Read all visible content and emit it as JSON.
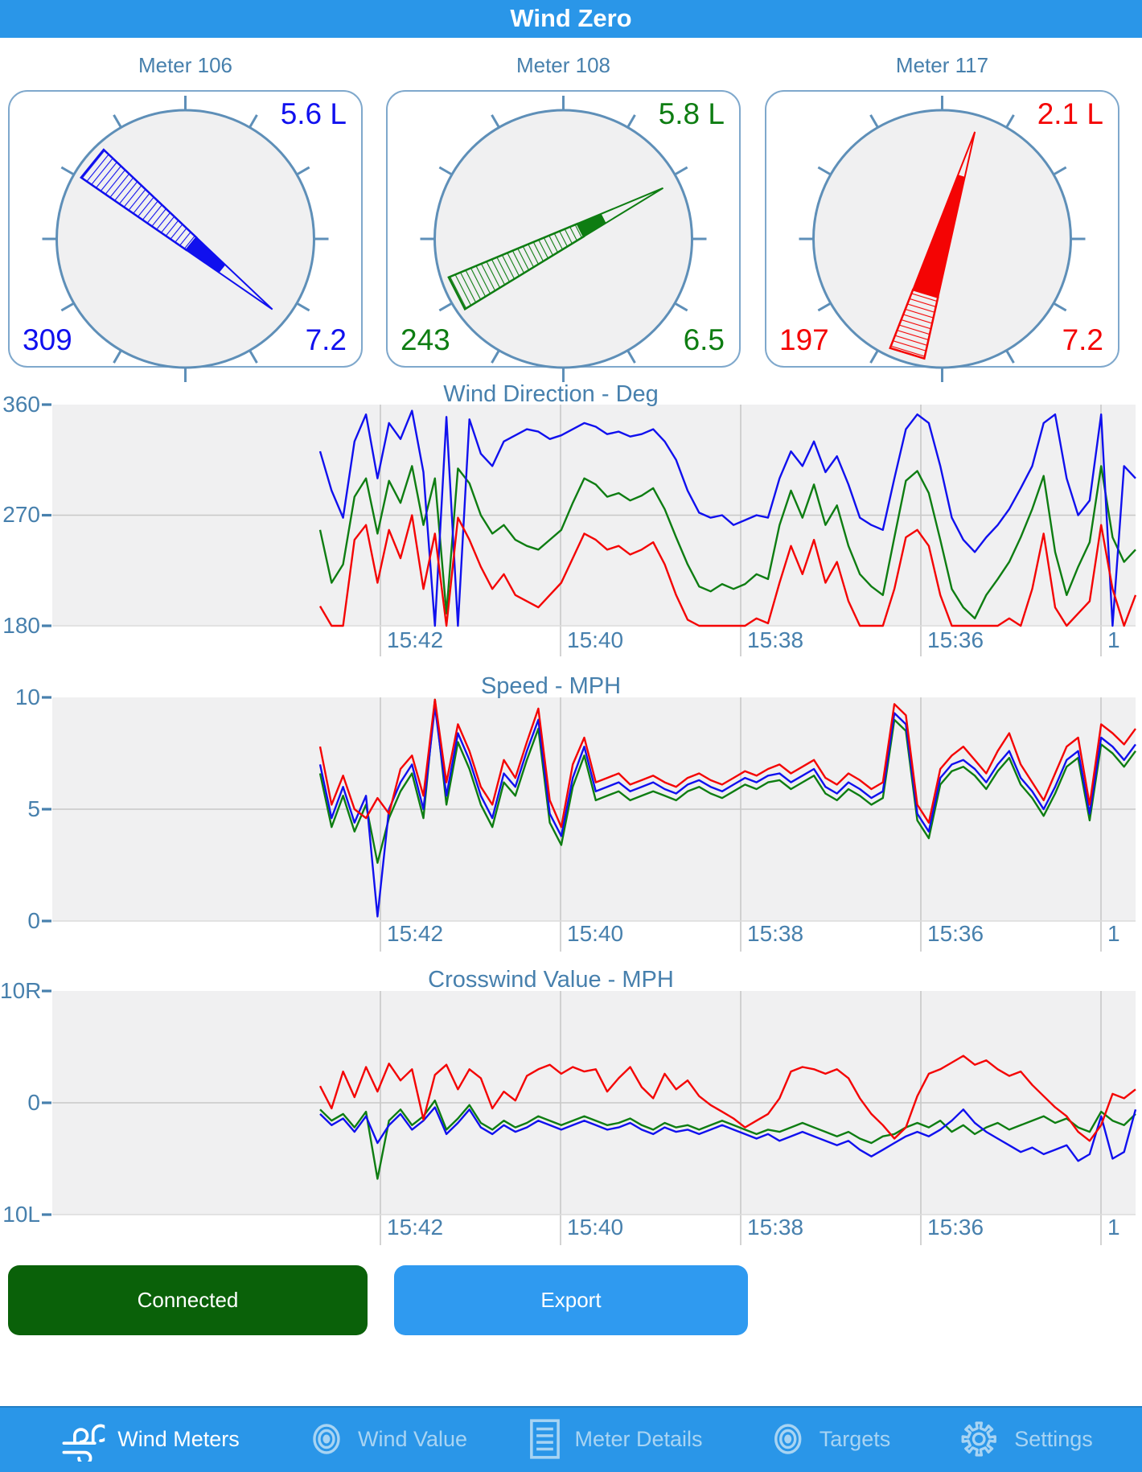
{
  "app": {
    "title": "Wind Zero"
  },
  "colors": {
    "accent_blue": "#2A96E8",
    "export_blue": "#2F9AF0",
    "connected_green": "#0A6109",
    "steel_text": "#4780AD",
    "plot_bg": "#F0F0F1",
    "grid": "#C8C8C8",
    "panel_border": "#7FA8CC",
    "gauge_ring": "#5E8FB8",
    "series_blue": "#1010EE",
    "series_green": "#0E7D12",
    "series_red": "#F40404"
  },
  "meters": [
    {
      "name": "Meter 106",
      "crosswind": "5.6 L",
      "direction": "309",
      "speed": "7.2",
      "color": "#1010EE",
      "needle": {
        "direction_deg": 309,
        "hatch_end": 0.55,
        "solid_end": 0.72
      }
    },
    {
      "name": "Meter 108",
      "crosswind": "5.8 L",
      "direction": "243",
      "speed": "6.5",
      "color": "#0E7D12",
      "needle": {
        "direction_deg": 243,
        "hatch_end": 0.6,
        "solid_end": 0.71
      }
    },
    {
      "name": "Meter 117",
      "crosswind": "2.1 L",
      "direction": "197",
      "speed": "7.2",
      "color": "#F40404",
      "needle": {
        "direction_deg": 197,
        "hatch_end": 0.27,
        "solid_end": 0.8
      }
    }
  ],
  "chart_data": [
    {
      "id": "wind-direction",
      "type": "line",
      "title": "Wind Direction - Deg",
      "ylabels": [
        "360",
        "270",
        "180"
      ],
      "ymin": 180,
      "ymax": 360,
      "x_labels": [
        "15:42",
        "15:40",
        "15:38",
        "15:36",
        "1"
      ],
      "grid": true,
      "legend": "none",
      "series": [
        {
          "name": "meter-108",
          "color": "#0E7D12",
          "values": [
            258,
            215,
            230,
            285,
            300,
            255,
            298,
            280,
            310,
            262,
            300,
            190,
            308,
            296,
            270,
            255,
            262,
            250,
            245,
            242,
            250,
            258,
            280,
            300,
            295,
            285,
            288,
            282,
            286,
            292,
            275,
            252,
            230,
            212,
            208,
            214,
            210,
            214,
            222,
            218,
            262,
            290,
            268,
            295,
            262,
            278,
            245,
            222,
            212,
            205,
            252,
            298,
            306,
            288,
            250,
            210,
            195,
            186,
            205,
            218,
            232,
            252,
            275,
            302,
            240,
            205,
            228,
            248,
            310,
            252,
            232,
            242
          ]
        },
        {
          "name": "meter-106",
          "color": "#1010EE",
          "values": [
            322,
            290,
            268,
            330,
            352,
            300,
            345,
            332,
            355,
            305,
            180,
            350,
            180,
            348,
            320,
            310,
            330,
            335,
            340,
            338,
            332,
            335,
            340,
            345,
            342,
            336,
            338,
            334,
            336,
            340,
            330,
            315,
            290,
            272,
            268,
            270,
            262,
            266,
            270,
            268,
            300,
            322,
            310,
            330,
            305,
            318,
            295,
            268,
            262,
            258,
            300,
            340,
            352,
            345,
            310,
            268,
            250,
            240,
            252,
            262,
            275,
            292,
            310,
            345,
            352,
            300,
            270,
            282,
            352,
            180,
            310,
            300
          ]
        },
        {
          "name": "meter-117",
          "color": "#F40404",
          "values": [
            196,
            180,
            180,
            250,
            262,
            215,
            258,
            235,
            270,
            210,
            255,
            180,
            268,
            250,
            228,
            210,
            222,
            205,
            200,
            195,
            205,
            215,
            235,
            255,
            250,
            242,
            245,
            238,
            242,
            248,
            230,
            205,
            185,
            180,
            180,
            180,
            180,
            180,
            186,
            182,
            215,
            245,
            222,
            250,
            215,
            232,
            200,
            180,
            180,
            180,
            210,
            252,
            258,
            245,
            205,
            180,
            180,
            180,
            180,
            180,
            186,
            180,
            210,
            255,
            195,
            180,
            190,
            200,
            262,
            210,
            180,
            205
          ]
        }
      ]
    },
    {
      "id": "speed",
      "type": "line",
      "title": "Speed - MPH",
      "ylabels": [
        "10",
        "5",
        "0"
      ],
      "ymin": 0,
      "ymax": 10,
      "x_labels": [
        "15:42",
        "15:40",
        "15:38",
        "15:36",
        "1"
      ],
      "grid": true,
      "legend": "none",
      "series": [
        {
          "name": "meter-108",
          "color": "#0E7D12",
          "values": [
            6.6,
            4.2,
            5.6,
            4.0,
            5.2,
            2.6,
            4.6,
            5.8,
            6.6,
            4.6,
            9.9,
            5.2,
            8.0,
            6.8,
            5.2,
            4.2,
            6.2,
            5.6,
            7.2,
            8.6,
            4.4,
            3.4,
            6.0,
            7.4,
            5.4,
            5.6,
            5.8,
            5.4,
            5.6,
            5.8,
            5.6,
            5.4,
            5.8,
            6.0,
            5.7,
            5.5,
            5.8,
            6.1,
            5.9,
            6.2,
            6.3,
            5.9,
            6.2,
            6.5,
            5.7,
            5.4,
            5.9,
            5.6,
            5.2,
            5.5,
            9.0,
            8.5,
            4.5,
            3.7,
            6.1,
            6.7,
            6.9,
            6.5,
            5.9,
            6.7,
            7.3,
            6.1,
            5.5,
            4.7,
            5.7,
            6.9,
            7.3,
            4.5,
            7.9,
            7.5,
            6.9,
            7.6
          ]
        },
        {
          "name": "meter-106",
          "color": "#1010EE",
          "values": [
            7.0,
            4.6,
            6.0,
            4.4,
            5.6,
            0.2,
            5.0,
            6.2,
            7.0,
            5.0,
            9.6,
            5.6,
            8.4,
            7.2,
            5.6,
            4.6,
            6.6,
            6.0,
            7.6,
            9.0,
            4.8,
            3.8,
            6.4,
            7.8,
            5.8,
            6.0,
            6.2,
            5.8,
            6.0,
            6.2,
            5.9,
            5.7,
            6.1,
            6.3,
            6.0,
            5.8,
            6.1,
            6.4,
            6.2,
            6.5,
            6.6,
            6.2,
            6.5,
            6.8,
            6.0,
            5.7,
            6.2,
            5.9,
            5.5,
            5.8,
            9.3,
            8.8,
            4.8,
            4.0,
            6.4,
            7.0,
            7.2,
            6.8,
            6.2,
            7.0,
            7.6,
            6.4,
            5.8,
            5.0,
            6.0,
            7.2,
            7.6,
            4.8,
            8.2,
            7.8,
            7.2,
            7.9
          ]
        },
        {
          "name": "meter-117",
          "color": "#F40404",
          "values": [
            7.8,
            5.2,
            6.5,
            5.0,
            4.6,
            5.5,
            4.8,
            6.8,
            7.4,
            5.6,
            9.9,
            6.2,
            8.8,
            7.6,
            6.0,
            5.2,
            7.2,
            6.4,
            8.0,
            9.5,
            5.4,
            4.2,
            7.0,
            8.2,
            6.2,
            6.4,
            6.6,
            6.1,
            6.3,
            6.5,
            6.2,
            6.0,
            6.4,
            6.6,
            6.3,
            6.1,
            6.4,
            6.7,
            6.5,
            6.8,
            7.0,
            6.6,
            6.9,
            7.2,
            6.4,
            6.1,
            6.6,
            6.3,
            5.9,
            6.2,
            9.7,
            9.2,
            5.2,
            4.4,
            6.8,
            7.4,
            7.8,
            7.2,
            6.6,
            7.6,
            8.4,
            7.0,
            6.2,
            5.4,
            6.6,
            7.8,
            8.2,
            5.2,
            8.8,
            8.4,
            7.9,
            8.6
          ]
        }
      ]
    },
    {
      "id": "crosswind",
      "type": "line",
      "title": "Crosswind Value - MPH",
      "ylabels": [
        "10R",
        "0",
        "10L"
      ],
      "ymin": -10,
      "ymax": 10,
      "x_labels": [
        "15:42",
        "15:40",
        "15:38",
        "15:36",
        "1"
      ],
      "grid": true,
      "legend": "none",
      "series": [
        {
          "name": "meter-108",
          "color": "#0E7D12",
          "values": [
            -0.6,
            -1.6,
            -1.0,
            -2.2,
            -0.8,
            -6.8,
            -1.6,
            -0.6,
            -2.0,
            -1.2,
            0.2,
            -2.4,
            -1.4,
            -0.2,
            -1.8,
            -2.4,
            -1.6,
            -2.2,
            -1.8,
            -1.2,
            -1.6,
            -2.0,
            -1.6,
            -1.2,
            -1.6,
            -2.0,
            -1.8,
            -1.4,
            -2.0,
            -2.4,
            -1.8,
            -2.2,
            -2.0,
            -2.4,
            -2.0,
            -1.6,
            -2.0,
            -2.4,
            -2.8,
            -2.4,
            -2.6,
            -2.2,
            -1.8,
            -2.2,
            -2.6,
            -3.0,
            -2.6,
            -3.2,
            -3.6,
            -3.0,
            -2.8,
            -2.2,
            -1.8,
            -2.2,
            -1.6,
            -2.6,
            -2.0,
            -2.8,
            -2.2,
            -1.8,
            -2.4,
            -2.0,
            -1.6,
            -1.2,
            -1.8,
            -1.4,
            -2.2,
            -2.6,
            -0.8,
            -1.6,
            -2.0,
            -1.0
          ]
        },
        {
          "name": "meter-106",
          "color": "#1010EE",
          "values": [
            -1.0,
            -2.0,
            -1.4,
            -2.6,
            -1.2,
            -3.6,
            -2.0,
            -1.0,
            -2.4,
            -1.6,
            -0.4,
            -2.8,
            -1.8,
            -0.6,
            -2.2,
            -2.8,
            -2.0,
            -2.6,
            -2.2,
            -1.6,
            -2.0,
            -2.4,
            -2.0,
            -1.6,
            -2.0,
            -2.4,
            -2.2,
            -1.8,
            -2.4,
            -2.8,
            -2.2,
            -2.6,
            -2.4,
            -2.8,
            -2.4,
            -2.0,
            -2.4,
            -2.8,
            -3.2,
            -2.8,
            -3.4,
            -3.0,
            -2.6,
            -3.0,
            -3.4,
            -3.8,
            -3.4,
            -4.2,
            -4.8,
            -4.2,
            -3.6,
            -3.0,
            -2.6,
            -3.0,
            -2.4,
            -1.6,
            -0.6,
            -1.8,
            -2.6,
            -3.2,
            -3.8,
            -4.4,
            -4.0,
            -4.6,
            -4.2,
            -3.8,
            -5.2,
            -4.6,
            -1.2,
            -5.0,
            -4.4,
            -0.6
          ]
        },
        {
          "name": "meter-117",
          "color": "#F40404",
          "values": [
            1.5,
            -0.5,
            2.8,
            0.5,
            3.2,
            1.0,
            3.5,
            2.0,
            3.0,
            -1.5,
            2.5,
            3.4,
            1.2,
            3.0,
            2.2,
            -0.5,
            1.0,
            0.2,
            2.4,
            3.0,
            3.4,
            2.6,
            3.2,
            2.8,
            3.0,
            1.0,
            2.2,
            3.2,
            1.4,
            0.4,
            2.6,
            1.2,
            2.0,
            0.6,
            -0.2,
            -0.8,
            -1.4,
            -2.2,
            -1.6,
            -1.0,
            0.4,
            2.8,
            3.2,
            3.0,
            2.6,
            3.0,
            2.2,
            0.4,
            -1.0,
            -2.0,
            -3.2,
            -2.2,
            0.6,
            2.6,
            3.0,
            3.6,
            4.2,
            3.4,
            3.8,
            3.0,
            2.4,
            2.8,
            1.6,
            0.6,
            -0.4,
            -1.2,
            -2.6,
            -3.4,
            -2.0,
            0.8,
            0.4,
            1.2
          ]
        }
      ]
    }
  ],
  "buttons": {
    "connected": "Connected",
    "export": "Export"
  },
  "tabbar": {
    "items": [
      {
        "label": "Wind Meters",
        "icon": "wind-icon",
        "active": true
      },
      {
        "label": "Wind Value",
        "icon": "target-icon",
        "active": false
      },
      {
        "label": "Meter Details",
        "icon": "list-icon",
        "active": false
      },
      {
        "label": "Targets",
        "icon": "target-icon",
        "active": false
      },
      {
        "label": "Settings",
        "icon": "gear-icon",
        "active": false
      }
    ]
  }
}
